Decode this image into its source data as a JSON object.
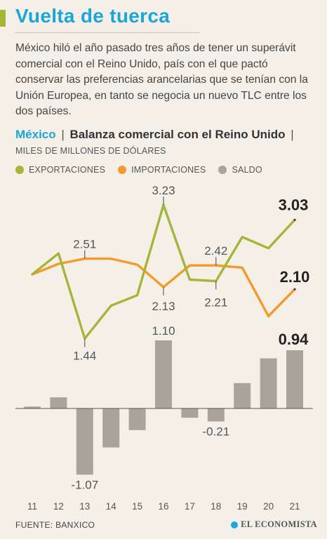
{
  "title": "Vuelta de tuerca",
  "lead": "México hiló el año pasado tres años de tener un superávit comercial con el Reino Unido, país con el que pactó conservar las preferencias arancelarias que se tenían con la Unión Europea, en tanto se negocia un nuevo TLC entre los dos países.",
  "chart_heading": {
    "country": "México",
    "separator": "|",
    "name": "Balanza comercial con el Reino Unido",
    "units_separator": "|",
    "units": "MILES DE MILLONES DE DÓLARES"
  },
  "source": "FUENTE: BANXICO",
  "brand": "EL ECONOMISTA",
  "colors": {
    "exportaciones": "#a4b63a",
    "importaciones": "#f39a2a",
    "saldo": "#aaa39b",
    "title": "#1ba6d9"
  },
  "chart_data": {
    "type": "line+bar",
    "categories": [
      "11",
      "12",
      "13",
      "14",
      "15",
      "16",
      "17",
      "18",
      "19",
      "20",
      "21"
    ],
    "series": [
      {
        "name": "EXPORTACIONES",
        "type": "line",
        "values": [
          2.3,
          2.58,
          1.44,
          1.88,
          2.02,
          3.23,
          2.23,
          2.21,
          2.8,
          2.65,
          3.03
        ]
      },
      {
        "name": "IMPORTACIONES",
        "type": "line",
        "values": [
          2.3,
          2.44,
          2.51,
          2.51,
          2.43,
          2.13,
          2.42,
          2.42,
          2.39,
          1.74,
          2.1
        ]
      },
      {
        "name": "SALDO",
        "type": "bar",
        "values": [
          0.03,
          0.18,
          -1.07,
          -0.63,
          -0.35,
          1.1,
          -0.15,
          -0.21,
          0.41,
          0.81,
          0.94
        ]
      }
    ],
    "point_labels": {
      "exportaciones": [
        {
          "index": 2,
          "text": "1.44"
        },
        {
          "index": 5,
          "text": "3.23"
        },
        {
          "index": 7,
          "text": "2.21"
        },
        {
          "index": 10,
          "text": "3.03",
          "emphasis": true
        }
      ],
      "importaciones": [
        {
          "index": 2,
          "text": "2.51"
        },
        {
          "index": 5,
          "text": "2.13"
        },
        {
          "index": 7,
          "text": "2.42"
        },
        {
          "index": 10,
          "text": "2.10",
          "emphasis": true
        }
      ],
      "saldo": [
        {
          "index": 2,
          "text": "-1.07"
        },
        {
          "index": 5,
          "text": "1.10"
        },
        {
          "index": 7,
          "text": "-0.21"
        },
        {
          "index": 10,
          "text": "0.94",
          "emphasis": true
        }
      ]
    },
    "legend_position": "top-left",
    "grid": false
  }
}
